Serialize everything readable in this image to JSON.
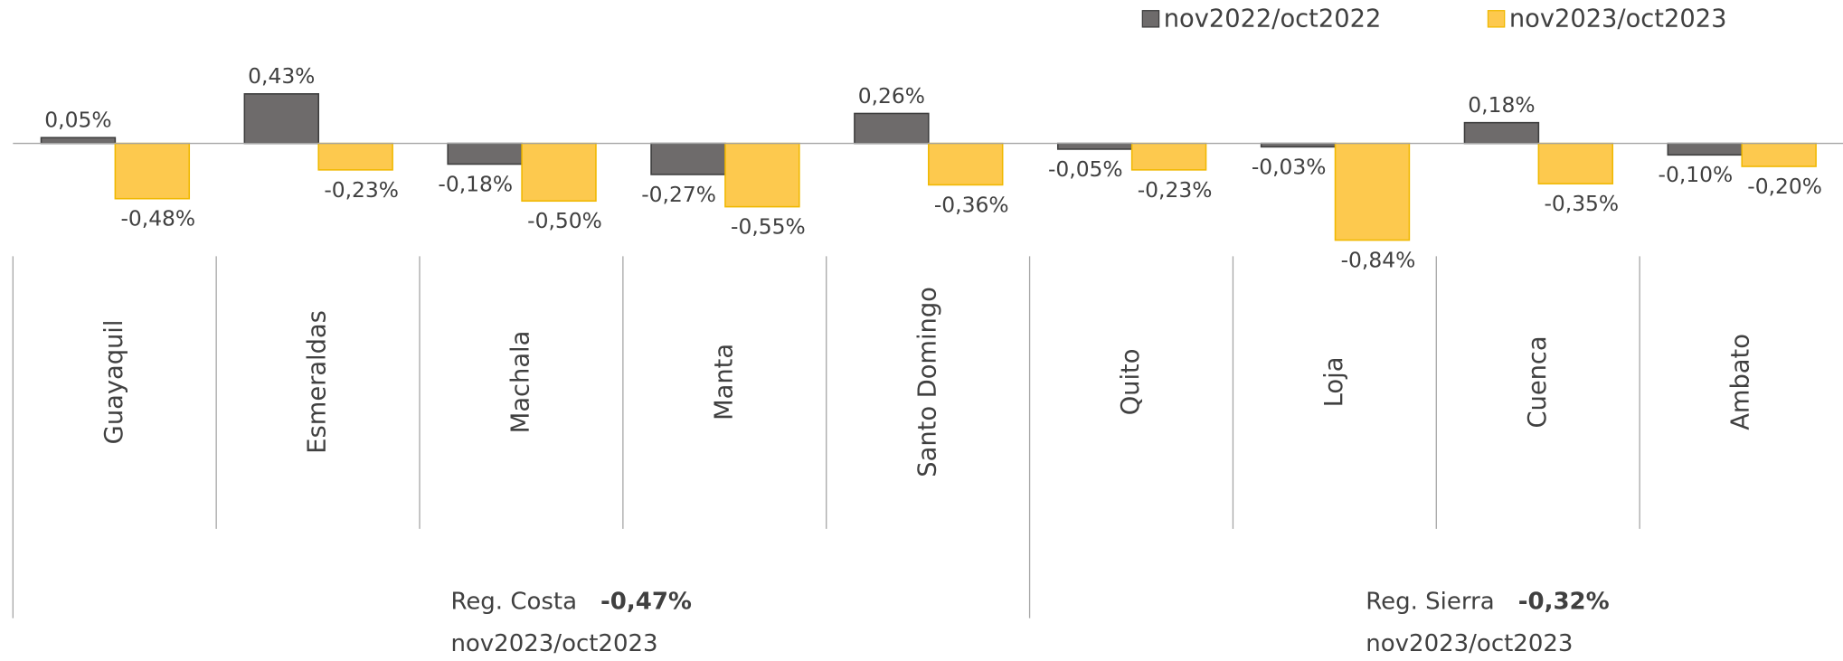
{
  "chart_data": {
    "type": "bar",
    "categories": [
      "Guayaquil",
      "Esmeraldas",
      "Machala",
      "Manta",
      "Santo Domingo",
      "Quito",
      "Loja",
      "Cuenca",
      "Ambato"
    ],
    "series": [
      {
        "name": "nov2022/oct2022",
        "color": "#6e6b6b",
        "values": [
          0.05,
          0.43,
          -0.18,
          -0.27,
          0.26,
          -0.05,
          -0.03,
          0.18,
          -0.1
        ],
        "value_labels": [
          "0,05%",
          "0,43%",
          "-0,18%",
          "-0,27%",
          "0,26%",
          "-0,05%",
          "-0,03%",
          "0,18%",
          "-0,10%"
        ]
      },
      {
        "name": "nov2023/oct2023",
        "color": "#fdc94e",
        "values": [
          -0.48,
          -0.23,
          -0.5,
          -0.55,
          -0.36,
          -0.23,
          -0.84,
          -0.35,
          -0.2
        ],
        "value_labels": [
          "-0,48%",
          "-0,23%",
          "-0,50%",
          "-0,55%",
          "-0,36%",
          "-0,23%",
          "-0,84%",
          "-0,35%",
          "-0,20%"
        ]
      }
    ],
    "groups": [
      {
        "name": "Reg. Costa",
        "total": "-0,47%",
        "period": "nov2023/oct2023"
      },
      {
        "name": "Reg. Sierra",
        "total": "-0,32%",
        "period": "nov2023/oct2023"
      }
    ],
    "ylim": [
      -1,
      1
    ],
    "legend": "top-right"
  }
}
